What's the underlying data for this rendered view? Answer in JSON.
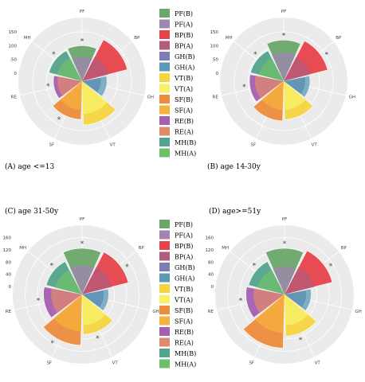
{
  "figure": {
    "legend": [
      {
        "label": "PF(B)",
        "color": "#6aa86a"
      },
      {
        "label": "PF(A)",
        "color": "#a184b0"
      },
      {
        "label": "BP(B)",
        "color": "#e8434b"
      },
      {
        "label": "BP(A)",
        "color": "#b35b7a"
      },
      {
        "label": "GH(B)",
        "color": "#7d7db3"
      },
      {
        "label": "GH(A)",
        "color": "#5a9ab5"
      },
      {
        "label": "VT(B)",
        "color": "#f5d53f"
      },
      {
        "label": "VT(A)",
        "color": "#f7f26a"
      },
      {
        "label": "SF(B)",
        "color": "#ec8c3c"
      },
      {
        "label": "SF(A)",
        "color": "#f7b23e"
      },
      {
        "label": "RE(B)",
        "color": "#a45fb0"
      },
      {
        "label": "RE(A)",
        "color": "#e08a6d"
      },
      {
        "label": "MH(B)",
        "color": "#53a38d"
      },
      {
        "label": "MH(A)",
        "color": "#6fbf6a"
      }
    ]
  },
  "chart_data": [
    {
      "type": "polar-bar",
      "caption": "(A) age <=13",
      "categories": [
        "PF",
        "BP",
        "GH",
        "VT",
        "SF",
        "RE",
        "MH"
      ],
      "radial_ticks": [
        0,
        50,
        100,
        150
      ],
      "rmax": 190,
      "series": [
        {
          "name": "B",
          "values": [
            100,
            140,
            40,
            130,
            110,
            75,
            95
          ]
        },
        {
          "name": "A",
          "values": [
            60,
            70,
            60,
            90,
            75,
            60,
            65
          ]
        }
      ],
      "significant": [
        true,
        false,
        false,
        false,
        true,
        true,
        true
      ]
    },
    {
      "type": "polar-bar",
      "caption": "(B) age 14-30y",
      "categories": [
        "PF",
        "BP",
        "GH",
        "VT",
        "SF",
        "RE",
        "MH"
      ],
      "radial_ticks": [
        0,
        50,
        100,
        150
      ],
      "rmax": 190,
      "series": [
        {
          "name": "B",
          "values": [
            120,
            135,
            50,
            110,
            115,
            95,
            95
          ]
        },
        {
          "name": "A",
          "values": [
            75,
            70,
            65,
            75,
            75,
            75,
            65
          ]
        }
      ],
      "significant": [
        true,
        true,
        false,
        false,
        false,
        true,
        true
      ]
    },
    {
      "type": "polar-bar",
      "caption": "(C) age 31-50y",
      "categories": [
        "PF",
        "BP",
        "GH",
        "VT",
        "SF",
        "RE",
        "MH"
      ],
      "radial_ticks": [
        0,
        40,
        80,
        120,
        160
      ],
      "rmax": 190,
      "series": [
        {
          "name": "B",
          "values": [
            125,
            130,
            45,
            105,
            140,
            100,
            95
          ]
        },
        {
          "name": "A",
          "values": [
            70,
            75,
            60,
            75,
            95,
            75,
            65
          ]
        }
      ],
      "significant": [
        true,
        true,
        false,
        true,
        true,
        true,
        true
      ]
    },
    {
      "type": "polar-bar",
      "caption": "(D) age>=51y",
      "categories": [
        "PF",
        "BP",
        "GH",
        "VT",
        "SF",
        "RE",
        "MH"
      ],
      "radial_ticks": [
        0,
        40,
        80,
        120,
        160
      ],
      "rmax": 190,
      "series": [
        {
          "name": "B",
          "values": [
            125,
            135,
            45,
            110,
            150,
            100,
            95
          ]
        },
        {
          "name": "A",
          "values": [
            65,
            75,
            60,
            75,
            100,
            75,
            65
          ]
        }
      ],
      "significant": [
        true,
        true,
        false,
        true,
        false,
        true,
        true
      ]
    }
  ]
}
